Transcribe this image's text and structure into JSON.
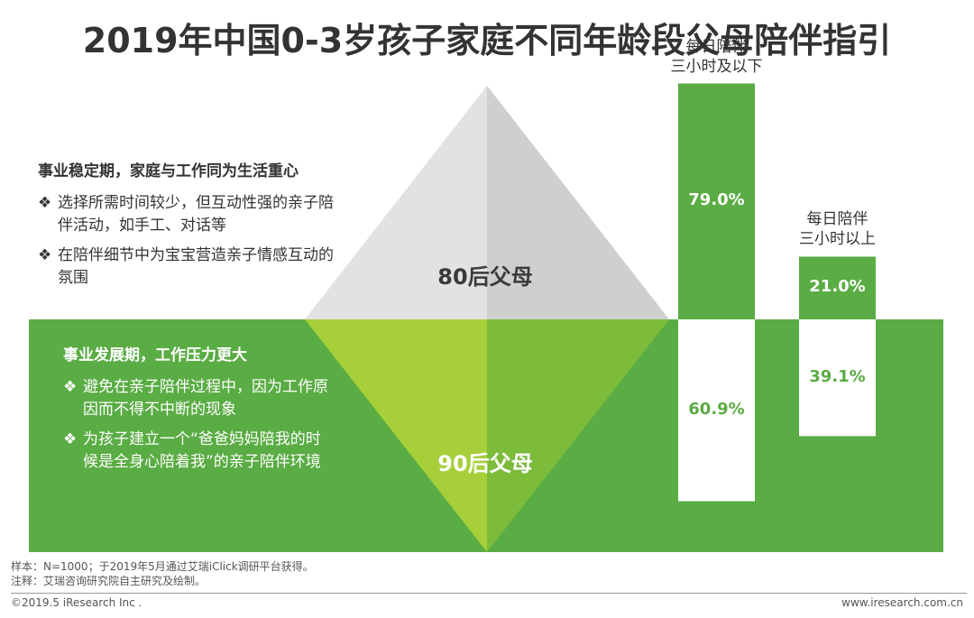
{
  "title": "2019年中国0-3岁孩子家庭不同年龄段父母陪伴指引",
  "top_block": {
    "heading": "事业稳定期，家庭与工作同为生活重心",
    "items": [
      "选择所需时间较少，但互动性强的亲子陪伴活动，如手工、对话等",
      "在陪伴细节中为宝宝营造亲子情感互动的氛围"
    ]
  },
  "bottom_block": {
    "heading": "事业发展期，工作压力更大",
    "items": [
      "避免在亲子陪伴过程中，因为工作原因而不得不中断的现象",
      "为孩子建立一个“爸爸妈妈陪我的时候是全身心陪着我”的亲子陪伴环境"
    ]
  },
  "bullet": "❖",
  "labels": {
    "gen80": "80后父母",
    "gen90": "90后父母"
  },
  "colors": {
    "band_green": "#5aac44",
    "light_green": "#a6cf3a",
    "mid_green": "#7dbb3b",
    "pyramid_light": "#e4e4e4",
    "pyramid_dark": "#cfcfcf",
    "bar_green": "#5aac44",
    "bar_white": "#ffffff",
    "text_green": "#5aac44"
  },
  "chart_data": {
    "type": "bar",
    "categories": [
      "每日陪伴三小时及以下",
      "每日陪伴三小时以上"
    ],
    "series": [
      {
        "name": "80后父母",
        "values": [
          79.0,
          21.0
        ]
      },
      {
        "name": "90后父母",
        "values": [
          60.9,
          39.1
        ]
      }
    ],
    "value_labels": {
      "gen80": [
        "79.0%",
        "21.0%"
      ],
      "gen90": [
        "60.9%",
        "39.1%"
      ]
    },
    "bar_titles": [
      [
        "每日陪伴",
        "三小时及以下"
      ],
      [
        "每日陪伴",
        "三小时以上"
      ]
    ]
  },
  "footnotes": {
    "sample": "样本：N=1000；于2019年5月通过艾瑞iClick调研平台获得。",
    "note": "注释：艾瑞咨询研究院自主研究及绘制。"
  },
  "copyright": "©2019.5 iResearch Inc .",
  "site": "www.iresearch.com.cn"
}
